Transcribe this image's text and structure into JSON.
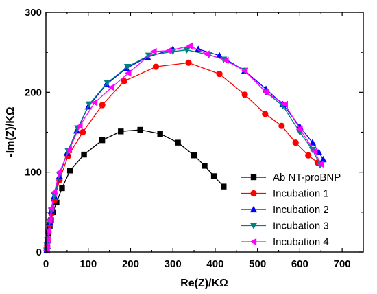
{
  "chart_data": {
    "type": "scatter",
    "title": "",
    "xlabel": "Re(Z)/KΩ",
    "ylabel": "-Im(Z)/KΩ",
    "xlim": [
      0,
      750
    ],
    "ylim": [
      0,
      300
    ],
    "xticks": [
      0,
      100,
      200,
      300,
      400,
      500,
      600,
      700
    ],
    "yticks": [
      0,
      100,
      200,
      300
    ],
    "grid": false,
    "legend_position": "bottom-right",
    "series": [
      {
        "name": "Ab NT-proBNP",
        "color": "#000000",
        "marker": "square",
        "points": [
          [
            2,
            2
          ],
          [
            3,
            8
          ],
          [
            4,
            15
          ],
          [
            6,
            23
          ],
          [
            9,
            32
          ],
          [
            12,
            40
          ],
          [
            17,
            50
          ],
          [
            25,
            62
          ],
          [
            38,
            80
          ],
          [
            57,
            102
          ],
          [
            90,
            122
          ],
          [
            133,
            140
          ],
          [
            177,
            151
          ],
          [
            223,
            153
          ],
          [
            270,
            148
          ],
          [
            312,
            137
          ],
          [
            350,
            121
          ],
          [
            375,
            108
          ],
          [
            397,
            95
          ],
          [
            420,
            82
          ]
        ]
      },
      {
        "name": "Incubation 1",
        "color": "#ff0000",
        "marker": "circle",
        "points": [
          [
            2,
            2
          ],
          [
            3,
            8
          ],
          [
            4,
            15
          ],
          [
            6,
            25
          ],
          [
            9,
            35
          ],
          [
            13,
            48
          ],
          [
            20,
            65
          ],
          [
            32,
            90
          ],
          [
            52,
            120
          ],
          [
            87,
            150
          ],
          [
            133,
            184
          ],
          [
            185,
            214
          ],
          [
            260,
            232
          ],
          [
            337,
            237
          ],
          [
            410,
            223
          ],
          [
            470,
            197
          ],
          [
            518,
            173
          ],
          [
            557,
            158
          ],
          [
            590,
            137
          ],
          [
            620,
            121
          ],
          [
            642,
            112
          ]
        ]
      },
      {
        "name": "Incubation 2",
        "color": "#0000ff",
        "marker": "triangle-up",
        "points": [
          [
            2,
            2
          ],
          [
            3,
            8
          ],
          [
            4,
            15
          ],
          [
            6,
            26
          ],
          [
            9,
            38
          ],
          [
            13,
            52
          ],
          [
            20,
            70
          ],
          [
            32,
            95
          ],
          [
            50,
            124
          ],
          [
            73,
            152
          ],
          [
            100,
            182
          ],
          [
            143,
            210
          ],
          [
            190,
            230
          ],
          [
            240,
            244
          ],
          [
            300,
            254
          ],
          [
            360,
            254
          ],
          [
            410,
            246
          ],
          [
            470,
            227
          ],
          [
            520,
            204
          ],
          [
            560,
            185
          ],
          [
            600,
            157
          ],
          [
            630,
            137
          ],
          [
            645,
            125
          ],
          [
            655,
            116
          ]
        ]
      },
      {
        "name": "Incubation 3",
        "color": "#008080",
        "marker": "triangle-down",
        "points": [
          [
            2,
            2
          ],
          [
            3,
            8
          ],
          [
            4,
            15
          ],
          [
            6,
            26
          ],
          [
            9,
            38
          ],
          [
            13,
            52
          ],
          [
            20,
            71
          ],
          [
            32,
            97
          ],
          [
            52,
            127
          ],
          [
            75,
            155
          ],
          [
            102,
            185
          ],
          [
            145,
            212
          ],
          [
            193,
            232
          ],
          [
            243,
            246
          ],
          [
            300,
            251
          ],
          [
            333,
            253
          ],
          [
            385,
            247
          ],
          [
            420,
            241
          ],
          [
            470,
            227
          ],
          [
            520,
            200
          ],
          [
            560,
            183
          ],
          [
            600,
            150
          ],
          [
            630,
            128
          ],
          [
            648,
            109
          ]
        ]
      },
      {
        "name": "Incubation 4",
        "color": "#ff00ff",
        "marker": "triangle-left",
        "points": [
          [
            2,
            2
          ],
          [
            3,
            8
          ],
          [
            4,
            15
          ],
          [
            6,
            27
          ],
          [
            9,
            40
          ],
          [
            13,
            55
          ],
          [
            20,
            75
          ],
          [
            32,
            100
          ],
          [
            55,
            128
          ],
          [
            80,
            158
          ],
          [
            115,
            187
          ],
          [
            155,
            206
          ],
          [
            195,
            224
          ],
          [
            255,
            251
          ],
          [
            290,
            252
          ],
          [
            340,
            258
          ],
          [
            380,
            248
          ],
          [
            425,
            240
          ],
          [
            470,
            227
          ],
          [
            520,
            200
          ],
          [
            565,
            185
          ],
          [
            600,
            154
          ],
          [
            635,
            126
          ],
          [
            650,
            110
          ]
        ]
      }
    ]
  }
}
